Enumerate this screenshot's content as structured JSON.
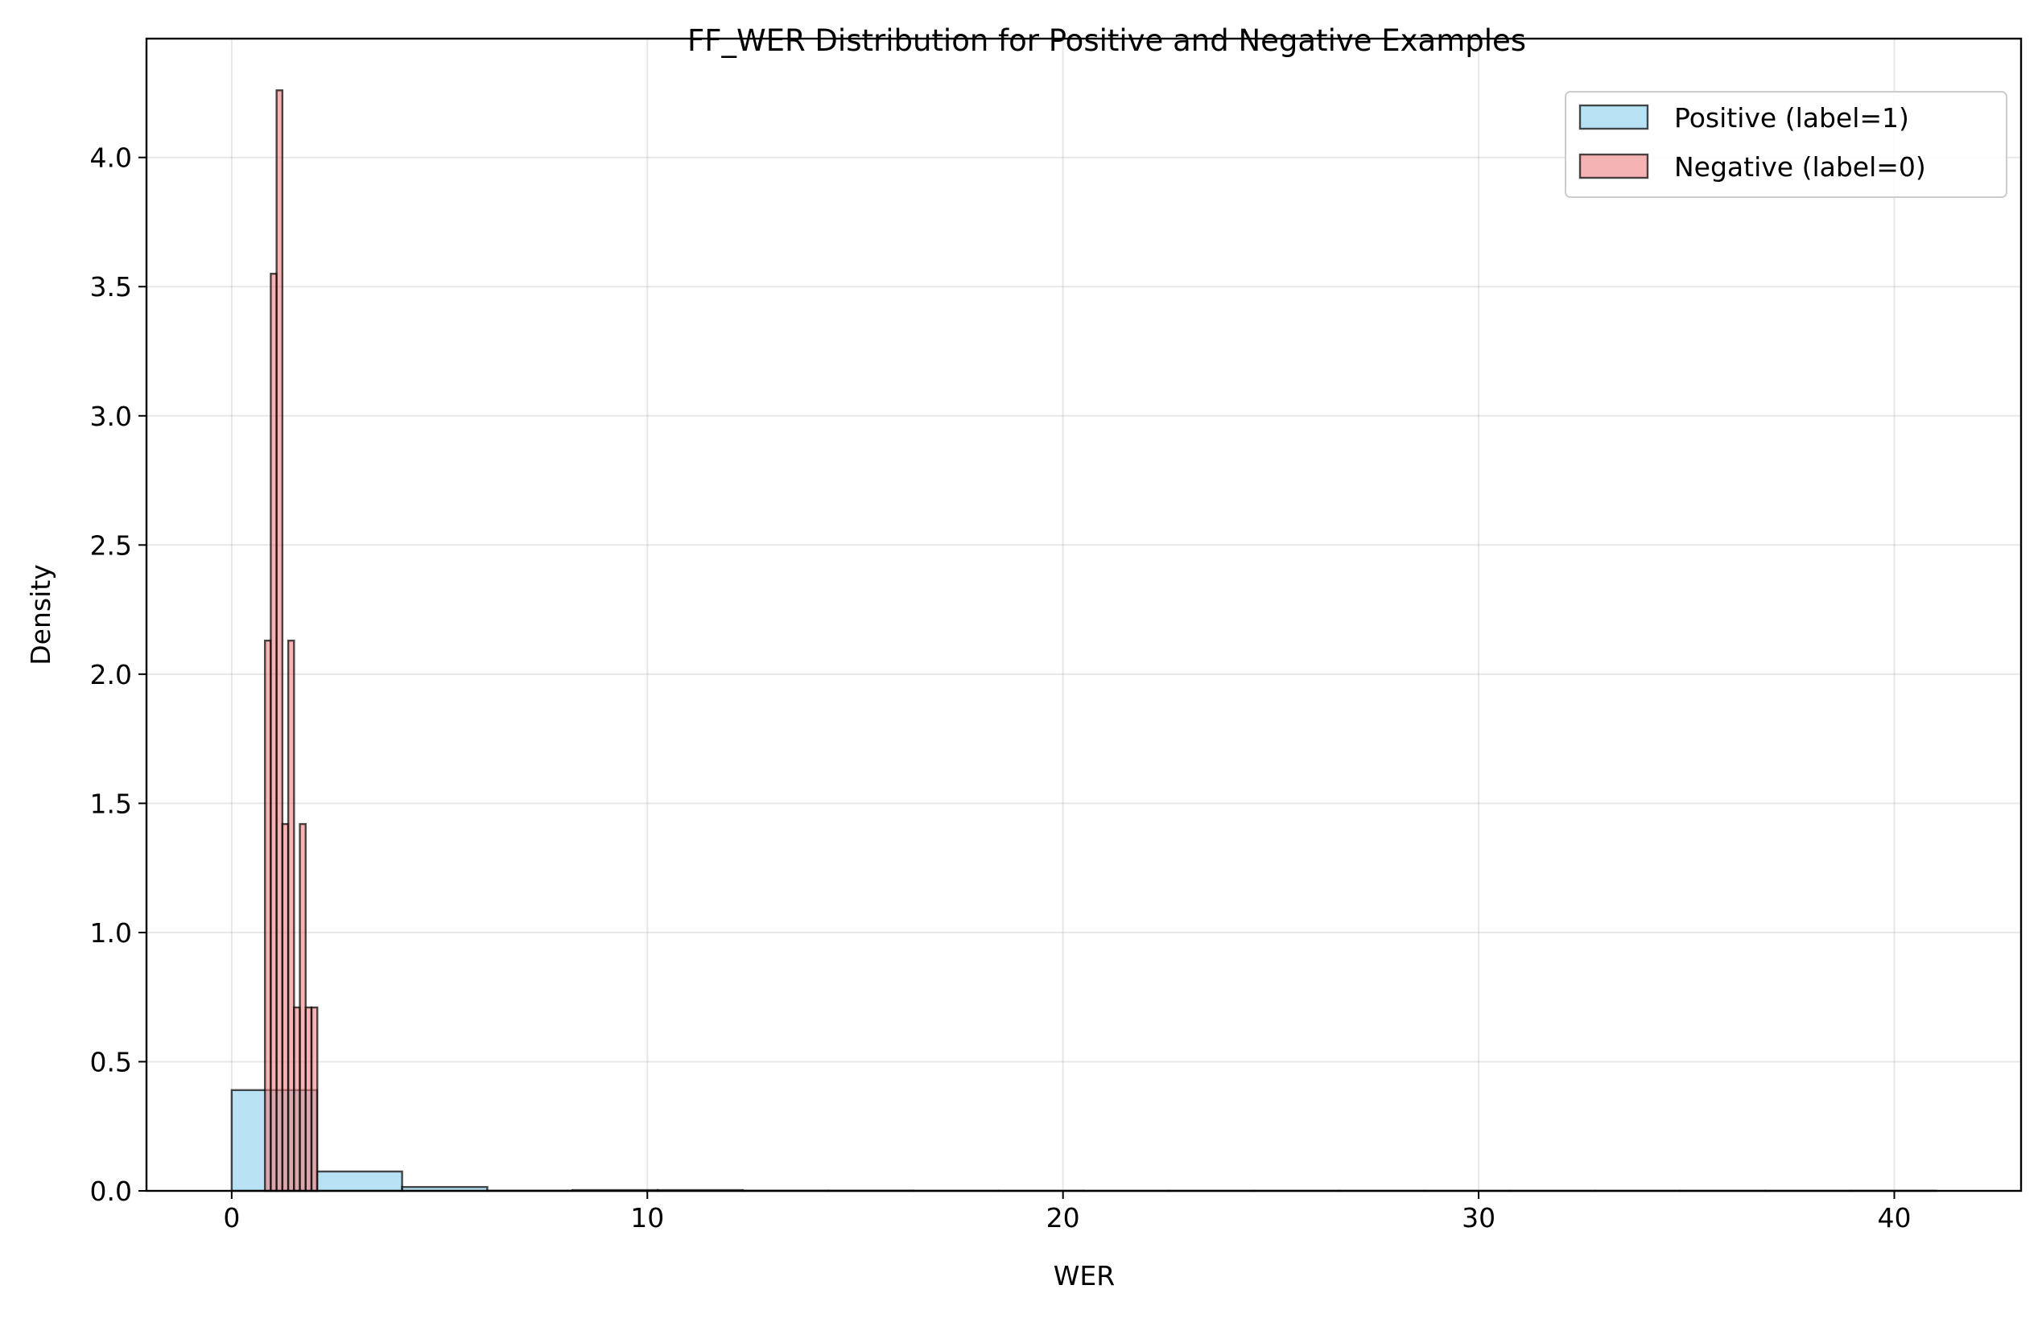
{
  "chart_data": {
    "type": "bar",
    "title": "FF_WER Distribution for Positive and Negative Examples",
    "xlabel": "WER",
    "ylabel": "Density",
    "xlim": [
      -2.05,
      43.05
    ],
    "ylim": [
      0,
      4.46
    ],
    "xticks": [
      0,
      10,
      20,
      30,
      40
    ],
    "xtick_labels": [
      "0",
      "10",
      "20",
      "30",
      "40"
    ],
    "yticks": [
      0.0,
      0.5,
      1.0,
      1.5,
      2.0,
      2.5,
      3.0,
      3.5,
      4.0
    ],
    "ytick_labels": [
      "0.0",
      "0.5",
      "1.0",
      "1.5",
      "2.0",
      "2.5",
      "3.0",
      "3.5",
      "4.0"
    ],
    "grid": true,
    "legend_position": "top-right",
    "series": [
      {
        "name": "Positive (label=1)",
        "color": "#87CEEB",
        "bins": [
          {
            "x0": 0.0,
            "x1": 2.05,
            "density": 0.39
          },
          {
            "x0": 2.05,
            "x1": 4.1,
            "density": 0.075
          },
          {
            "x0": 4.1,
            "x1": 6.15,
            "density": 0.015
          },
          {
            "x0": 6.15,
            "x1": 8.2,
            "density": 0.001
          },
          {
            "x0": 8.2,
            "x1": 10.25,
            "density": 0.003
          },
          {
            "x0": 10.25,
            "x1": 12.3,
            "density": 0.003
          },
          {
            "x0": 12.3,
            "x1": 14.35,
            "density": 0.001
          },
          {
            "x0": 14.35,
            "x1": 16.4,
            "density": 0.001
          },
          {
            "x0": 16.4,
            "x1": 18.45,
            "density": 0.0005
          },
          {
            "x0": 18.45,
            "x1": 20.5,
            "density": 0.0005
          },
          {
            "x0": 20.5,
            "x1": 22.55,
            "density": 0.0003
          },
          {
            "x0": 22.55,
            "x1": 24.6,
            "density": 0.0003
          },
          {
            "x0": 24.6,
            "x1": 26.65,
            "density": 0.0003
          },
          {
            "x0": 26.65,
            "x1": 28.7,
            "density": 0.0003
          },
          {
            "x0": 28.7,
            "x1": 30.75,
            "density": 0.0003
          },
          {
            "x0": 30.75,
            "x1": 32.8,
            "density": 0.0003
          },
          {
            "x0": 32.8,
            "x1": 34.85,
            "density": 0.0003
          },
          {
            "x0": 34.85,
            "x1": 36.9,
            "density": 0.0003
          },
          {
            "x0": 36.9,
            "x1": 38.95,
            "density": 0.0003
          },
          {
            "x0": 38.95,
            "x1": 41.0,
            "density": 0.0005
          }
        ]
      },
      {
        "name": "Negative (label=0)",
        "color": "#F08080",
        "bins": [
          {
            "x0": 0.8,
            "x1": 0.94,
            "density": 2.13
          },
          {
            "x0": 0.94,
            "x1": 1.08,
            "density": 3.55
          },
          {
            "x0": 1.08,
            "x1": 1.22,
            "density": 4.26
          },
          {
            "x0": 1.22,
            "x1": 1.36,
            "density": 1.42
          },
          {
            "x0": 1.36,
            "x1": 1.5,
            "density": 2.13
          },
          {
            "x0": 1.5,
            "x1": 1.64,
            "density": 0.71
          },
          {
            "x0": 1.64,
            "x1": 1.78,
            "density": 1.42
          },
          {
            "x0": 1.78,
            "x1": 1.92,
            "density": 0.71
          },
          {
            "x0": 1.92,
            "x1": 2.06,
            "density": 0.71
          }
        ]
      }
    ]
  }
}
